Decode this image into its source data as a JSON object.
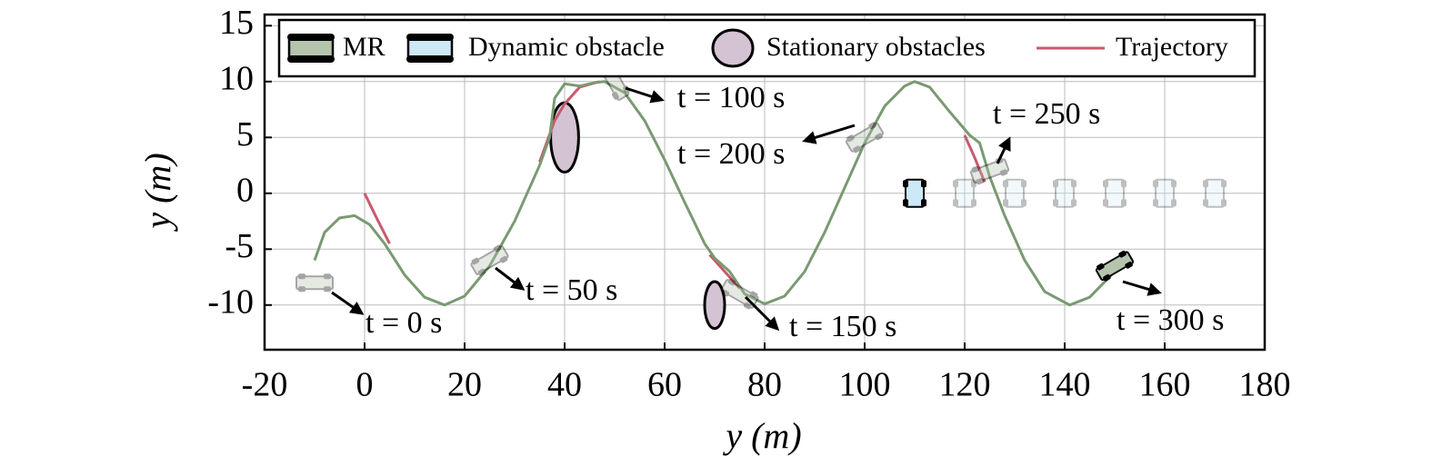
{
  "chart_data": {
    "type": "line",
    "xlabel": "y (m)",
    "ylabel": "y (m)",
    "xlim": [
      -20,
      180
    ],
    "xticks": [
      -20,
      0,
      20,
      40,
      60,
      80,
      100,
      120,
      140,
      160,
      180
    ],
    "ylim": [
      -14,
      16
    ],
    "yticks": [
      -10,
      -5,
      0,
      5,
      10,
      15
    ],
    "grid": true,
    "legend": "top",
    "series": [
      {
        "color": "#7a9a72",
        "x": [
          -10,
          -8,
          -5,
          -2,
          1,
          4,
          8,
          12,
          16,
          20,
          25,
          30,
          35,
          37,
          38,
          40,
          43,
          46,
          48,
          52,
          56,
          60,
          64,
          68,
          70,
          73,
          76,
          80,
          84,
          88,
          92,
          96,
          100,
          104,
          108,
          110,
          113,
          117,
          121,
          123,
          125,
          128,
          132,
          136,
          141,
          145,
          150
        ],
        "values": [
          -6,
          -3.5,
          -2.2,
          -2,
          -2.8,
          -4.5,
          -7.3,
          -9.3,
          -10,
          -9.2,
          -6.5,
          -2.5,
          2.5,
          5,
          8.5,
          9.8,
          9.6,
          9.9,
          10,
          9,
          6.5,
          3,
          -0.8,
          -4.5,
          -5.8,
          -7,
          -9,
          -9.9,
          -9.2,
          -7,
          -3.5,
          0.5,
          4.5,
          7.8,
          9.6,
          10,
          9.5,
          7.3,
          5.2,
          4.5,
          1.5,
          -2,
          -6,
          -8.8,
          -10,
          -9.3,
          -7
        ]
      },
      {
        "name": "Trajectory",
        "color": "#c85a6e",
        "x": [
          0,
          2.5,
          5,
          20,
          35,
          38,
          40,
          43,
          47,
          60,
          69,
          72,
          75,
          100,
          120,
          122,
          124
        ],
        "values": [
          0,
          -2.3,
          -4.5,
          null,
          2.8,
          6.5,
          8,
          9.5,
          10,
          null,
          -5.5,
          -7,
          -8.5,
          null,
          5.2,
          3.2,
          1
        ]
      }
    ],
    "mr": {
      "name": "MR",
      "color": "#b5c4ad",
      "x": [
        -10,
        25,
        50,
        75,
        100,
        125,
        150
      ],
      "values": [
        -8,
        -6,
        10,
        -9,
        5,
        2,
        -6.5
      ],
      "heading": [
        90,
        60,
        -30,
        -60,
        60,
        70,
        60
      ]
    },
    "dynamic_obstacle": {
      "name": "Dynamic obstacle",
      "color": "#cde9f7",
      "x": [
        110,
        120,
        130,
        140,
        150,
        160,
        170
      ],
      "values": [
        0,
        0,
        0,
        0,
        0,
        0,
        0
      ]
    },
    "stationary_obstacles": {
      "name": "Stationary obstacles",
      "color": "#d3c3d3",
      "x": [
        40,
        70
      ],
      "values": [
        5,
        -10
      ],
      "rx": [
        2.8,
        2
      ],
      "ry": [
        3.1,
        2.1
      ]
    },
    "annotations": [
      "t = 0 s",
      "t = 50 s",
      "t = 100 s",
      "t = 200 s",
      "t = 150 s",
      "t = 250 s",
      "t = 300 s"
    ]
  }
}
